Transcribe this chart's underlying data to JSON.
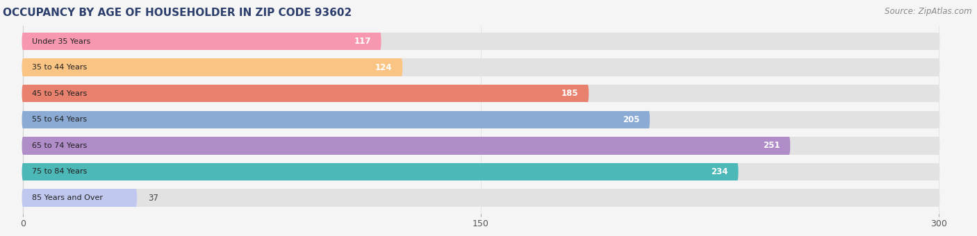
{
  "title": "OCCUPANCY BY AGE OF HOUSEHOLDER IN ZIP CODE 93602",
  "source": "Source: ZipAtlas.com",
  "categories": [
    "Under 35 Years",
    "35 to 44 Years",
    "45 to 54 Years",
    "55 to 64 Years",
    "65 to 74 Years",
    "75 to 84 Years",
    "85 Years and Over"
  ],
  "values": [
    117,
    124,
    185,
    205,
    251,
    234,
    37
  ],
  "bar_colors": [
    "#F898B0",
    "#F9C484",
    "#E8826E",
    "#8BAAD4",
    "#B08CC8",
    "#4DB8B8",
    "#C0C8F0"
  ],
  "xlim": [
    0,
    300
  ],
  "xticks": [
    0,
    150,
    300
  ],
  "background_color": "#f5f5f5",
  "bar_background": "#e2e2e2",
  "title_color": "#2C3E6B",
  "source_color": "#888888",
  "title_fontsize": 11,
  "source_fontsize": 8.5,
  "tick_fontsize": 9,
  "bar_label_fontsize": 8.5,
  "category_fontsize": 8.0,
  "bar_height": 0.68,
  "value_threshold": 60
}
